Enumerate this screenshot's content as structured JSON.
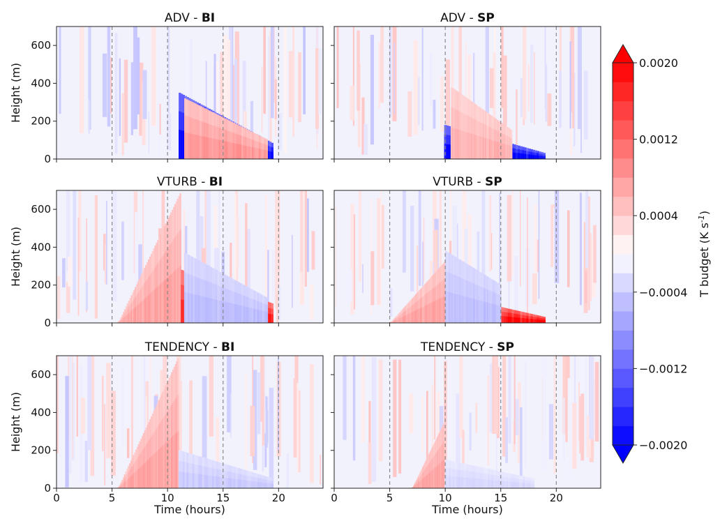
{
  "chart_data": {
    "type": "heatmap",
    "layout": "3x2 panel grid of time-height contour plots",
    "xlabel": "Time (hours)",
    "ylabel": "Height (m)",
    "xlim": [
      0,
      24
    ],
    "ylim": [
      0,
      700
    ],
    "xticks": [
      0,
      5,
      10,
      15,
      20
    ],
    "yticks": [
      0,
      200,
      400,
      600
    ],
    "dashed_vertical_lines_at_hours": [
      5,
      10,
      15,
      20
    ],
    "panels": [
      {
        "variable": "ADV",
        "case": "BI",
        "title_prefix": "ADV - ",
        "title_bold": "BI",
        "row": 0,
        "col": 0,
        "features": [
          {
            "kind": "negative",
            "t0": 11.0,
            "t1": 19.5,
            "h_top_start": 350,
            "h_top_end": 80,
            "strength": 0.95
          },
          {
            "kind": "positive",
            "t0": 11.5,
            "t1": 19.0,
            "h_top_start": 320,
            "h_top_end": 100,
            "strength": 0.4
          }
        ]
      },
      {
        "variable": "ADV",
        "case": "SP",
        "title_prefix": "ADV - ",
        "title_bold": "SP",
        "row": 0,
        "col": 1,
        "features": [
          {
            "kind": "negative",
            "t0": 9.9,
            "t1": 19.0,
            "h_top_start": 180,
            "h_top_end": 30,
            "strength": 1.0
          },
          {
            "kind": "positive",
            "t0": 10.5,
            "t1": 16.0,
            "h_top_start": 380,
            "h_top_end": 150,
            "strength": 0.3
          }
        ]
      },
      {
        "variable": "VTURB",
        "case": "BI",
        "title_prefix": "VTURB - ",
        "title_bold": "BI",
        "row": 1,
        "col": 0,
        "features": [
          {
            "kind": "positive",
            "t0": 5.5,
            "t1": 11.2,
            "h_top_start": 0,
            "h_top_end": 700,
            "strength": 0.35
          },
          {
            "kind": "positive",
            "t0": 11.2,
            "t1": 19.5,
            "h_top_start": 280,
            "h_top_end": 100,
            "strength": 0.85
          },
          {
            "kind": "negative",
            "t0": 11.5,
            "t1": 19.0,
            "h_top_start": 370,
            "h_top_end": 130,
            "strength": 0.25
          }
        ]
      },
      {
        "variable": "VTURB",
        "case": "SP",
        "title_prefix": "VTURB - ",
        "title_bold": "SP",
        "row": 1,
        "col": 1,
        "features": [
          {
            "kind": "positive",
            "t0": 5.0,
            "t1": 10.0,
            "h_top_start": 0,
            "h_top_end": 330,
            "strength": 0.35
          },
          {
            "kind": "positive",
            "t0": 10.0,
            "t1": 19.0,
            "h_top_start": 150,
            "h_top_end": 30,
            "strength": 0.95
          },
          {
            "kind": "negative",
            "t0": 10.0,
            "t1": 15.0,
            "h_top_start": 380,
            "h_top_end": 200,
            "strength": 0.25
          }
        ]
      },
      {
        "variable": "TENDENCY",
        "case": "BI",
        "title_prefix": "TENDENCY - ",
        "title_bold": "BI",
        "row": 2,
        "col": 0,
        "features": [
          {
            "kind": "positive",
            "t0": 5.5,
            "t1": 11.0,
            "h_top_start": 0,
            "h_top_end": 700,
            "strength": 0.35
          },
          {
            "kind": "negative",
            "t0": 11.0,
            "t1": 19.5,
            "h_top_start": 200,
            "h_top_end": 50,
            "strength": 0.2
          }
        ]
      },
      {
        "variable": "TENDENCY",
        "case": "SP",
        "title_prefix": "TENDENCY - ",
        "title_bold": "SP",
        "row": 2,
        "col": 1,
        "features": [
          {
            "kind": "positive",
            "t0": 7.0,
            "t1": 9.9,
            "h_top_start": 0,
            "h_top_end": 350,
            "strength": 0.35
          },
          {
            "kind": "negative",
            "t0": 10.0,
            "t1": 18.0,
            "h_top_start": 150,
            "h_top_end": 50,
            "strength": 0.15
          }
        ]
      }
    ],
    "colorbar": {
      "label": "T budget (K s",
      "label_sup": "-1",
      "label_end": ")",
      "range": [
        -0.002,
        0.002
      ],
      "extend": "both",
      "levels": 20,
      "ticks": [
        0.002,
        0.0012,
        0.0004,
        -0.0004,
        -0.0012,
        -0.002
      ],
      "tick_labels": [
        "0.0020",
        "0.0012",
        "0.0004",
        "−0.0004",
        "−0.0012",
        "−0.0020"
      ],
      "cmap": "bwr",
      "color_neg": "#0000ff",
      "color_zero": "#ffffff",
      "color_pos": "#ff0000"
    }
  }
}
